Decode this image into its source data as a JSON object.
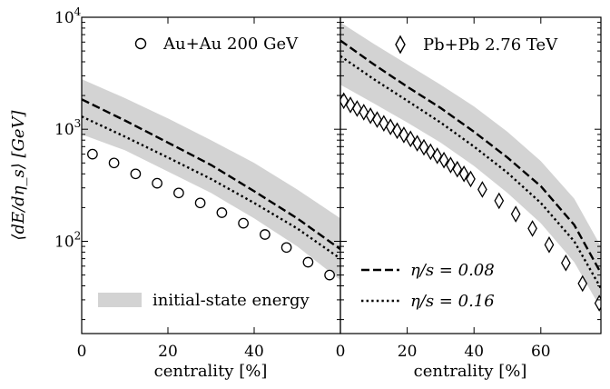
{
  "figure": {
    "ylabel": "⟨dE/dη_s⟩ [GeV]",
    "ytick_exponent_labels": [
      "2",
      "3",
      "4"
    ],
    "ytick_base": "10"
  },
  "chart_data": [
    {
      "type": "line",
      "panel": "left",
      "scale": "log",
      "xlabel": "centrality [%]",
      "ylabel": "⟨dE/dη_s⟩ [GeV]",
      "xlim": [
        0,
        60
      ],
      "ylim": [
        15,
        10000
      ],
      "xticks": [
        0,
        20,
        40
      ],
      "xtick_labels": [
        "0",
        "20",
        "40"
      ],
      "grid": false,
      "series": [
        {
          "name": "Au+Au 200 GeV",
          "style": "markers-circle",
          "x": [
            2.5,
            7.5,
            12.5,
            17.5,
            22.5,
            27.5,
            32.5,
            37.5,
            42.5,
            47.5,
            52.5,
            57.5
          ],
          "y": [
            600,
            500,
            400,
            330,
            270,
            220,
            180,
            145,
            115,
            88,
            65,
            50
          ]
        },
        {
          "name": "η/s = 0.08",
          "style": "dashed",
          "x": [
            0,
            10,
            20,
            30,
            40,
            50,
            60
          ],
          "y": [
            1850,
            1200,
            760,
            480,
            280,
            160,
            85
          ]
        },
        {
          "name": "η/s = 0.16",
          "style": "dotted",
          "x": [
            0,
            10,
            20,
            30,
            40,
            50,
            60
          ],
          "y": [
            1300,
            860,
            560,
            360,
            220,
            130,
            70
          ]
        },
        {
          "name": "initial-state energy",
          "style": "band",
          "x": [
            0,
            10,
            20,
            30,
            40,
            50,
            60
          ],
          "y_low": [
            900,
            650,
            420,
            270,
            160,
            90,
            45
          ],
          "y_high": [
            2800,
            1900,
            1250,
            800,
            500,
            290,
            160
          ]
        }
      ]
    },
    {
      "type": "line",
      "panel": "right",
      "scale": "log",
      "xlabel": "centrality [%]",
      "xlim": [
        0,
        78
      ],
      "ylim": [
        15,
        10000
      ],
      "xticks": [
        0,
        20,
        40,
        60
      ],
      "xtick_labels": [
        "0",
        "20",
        "40",
        "60"
      ],
      "grid": false,
      "series": [
        {
          "name": "Pb+Pb 2.76 TeV",
          "style": "markers-diamond",
          "x": [
            1,
            3,
            5,
            7,
            9,
            11,
            13,
            15,
            17,
            19,
            21,
            23,
            25,
            27,
            29,
            31,
            33,
            35,
            37,
            39,
            42.5,
            47.5,
            52.5,
            57.5,
            62.5,
            67.5,
            72.5,
            77.5
          ],
          "y": [
            1800,
            1650,
            1530,
            1420,
            1320,
            1220,
            1130,
            1050,
            970,
            890,
            820,
            750,
            690,
            630,
            580,
            530,
            480,
            440,
            400,
            360,
            290,
            230,
            175,
            130,
            93,
            64,
            42,
            28
          ]
        },
        {
          "name": "η/s = 0.08",
          "style": "dashed",
          "x": [
            0,
            10,
            20,
            30,
            40,
            50,
            60,
            70,
            78
          ],
          "y": [
            6200,
            3800,
            2400,
            1550,
            950,
            560,
            310,
            140,
            52
          ]
        },
        {
          "name": "η/s = 0.16",
          "style": "dotted",
          "x": [
            0,
            10,
            20,
            30,
            40,
            50,
            60,
            70,
            78
          ],
          "y": [
            4500,
            2800,
            1800,
            1150,
            700,
            410,
            220,
            100,
            38
          ]
        },
        {
          "name": "initial-state energy",
          "style": "band",
          "x": [
            0,
            10,
            20,
            30,
            40,
            50,
            60,
            70,
            78
          ],
          "y_low": [
            2500,
            1700,
            1150,
            760,
            470,
            270,
            145,
            65,
            25
          ],
          "y_high": [
            9000,
            5800,
            3800,
            2500,
            1600,
            950,
            520,
            240,
            90
          ]
        }
      ]
    }
  ],
  "legends": {
    "left_marker": "Au+Au 200 GeV",
    "right_marker": "Pb+Pb 2.76 TeV",
    "dashed": "η/s = 0.08",
    "dotted": "η/s = 0.16",
    "band": "initial-state energy"
  },
  "colors": {
    "band": "#d3d3d3",
    "line": "#000000",
    "marker_edge": "#000000",
    "marker_face": "#ffffff"
  }
}
